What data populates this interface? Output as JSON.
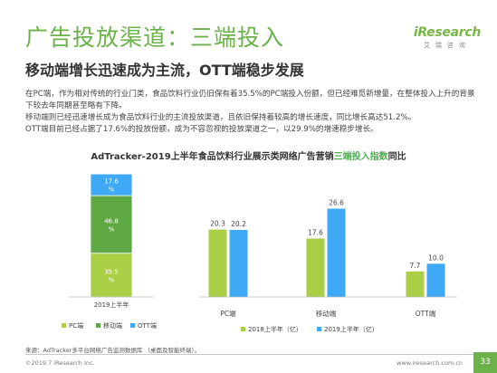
{
  "header": {
    "title": "广告投放渠道：三端投入",
    "subtitle": "移动端增长迅速成为主流，OTT端稳步发展",
    "logo_brand": "iResearch",
    "logo_cn": "艾瑞咨询"
  },
  "body": {
    "p1": "在PC端，作为相对传统的行业门类，食品饮料行业仍旧保有着35.5%的PC端投入份额，但已经难觅新增量，在整体投入上升的背景下较去年同期甚至略有下降。",
    "p2": "移动端则已经迅速增长成为食品饮料行业的主流投放渠道，且依旧保持着较高的增长速度，同比增长高达51.2%。",
    "p3": "OTT端目前已经占据了17.6%的投放份额，成为不容忽视的投放渠道之一，以29.9%的增速稳步增长。"
  },
  "chart_heading": {
    "before": "AdTracker-2019上半年食品饮料行业展示类网络广告营销",
    "highlight": "三端投入指数",
    "after": "同比"
  },
  "chart_data": [
    {
      "type": "bar",
      "stacked": true,
      "categories": [
        "2019上半年"
      ],
      "series": [
        {
          "name": "PC端",
          "values": [
            35.5
          ],
          "label": "35.5\n%",
          "color": "#A8CF45"
        },
        {
          "name": "移动端",
          "values": [
            46.8
          ],
          "label": "46.8\n%",
          "color": "#5FA944"
        },
        {
          "name": "OTT端",
          "values": [
            17.6
          ],
          "label": "17.6\n%",
          "color": "#3FA9F5"
        }
      ],
      "legend_position": "bottom",
      "ylim": [
        0,
        100
      ]
    },
    {
      "type": "bar",
      "categories": [
        "PC端",
        "移动端",
        "OTT端"
      ],
      "series": [
        {
          "name": "2018上半年（亿）",
          "values": [
            20.3,
            17.6,
            7.7
          ],
          "color": "#A8CF45"
        },
        {
          "name": "2019上半年（亿）",
          "values": [
            20.2,
            26.6,
            10.0
          ],
          "color": "#3FA9F5"
        }
      ],
      "legend_position": "bottom",
      "ylim": [
        0,
        30
      ]
    }
  ],
  "footer": {
    "source": "来源：AdTracker多平台网络广告监测数据库 （桌面及智能终端）。",
    "copyright": "©2019.7 iResearch Inc.",
    "website": "www.iresearch.com.cn",
    "page": "33"
  }
}
